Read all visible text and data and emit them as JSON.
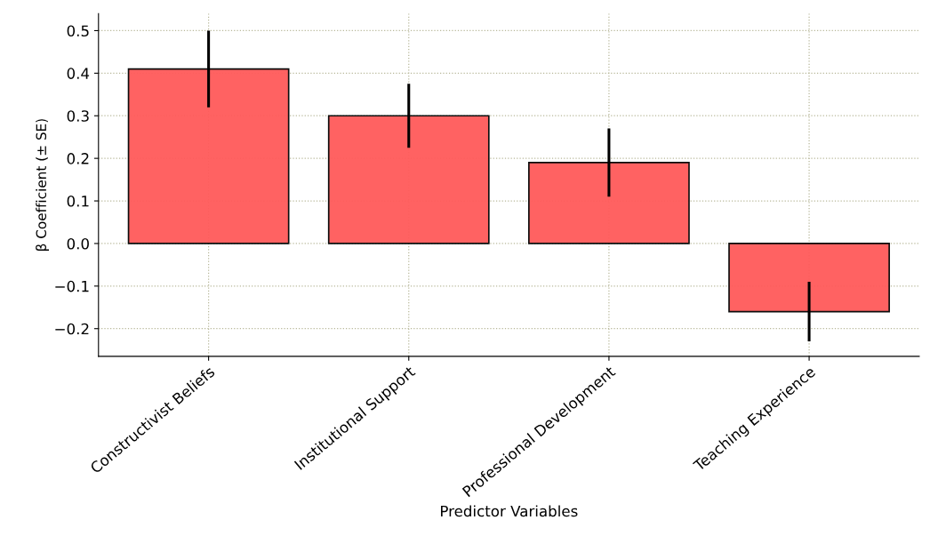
{
  "chart_data": {
    "type": "bar",
    "xlabel": "Predictor Variables",
    "ylabel": "β Coefficient (± SE)",
    "categories": [
      "Constructivist Beliefs",
      "Institutional Support",
      "Professional Development",
      "Teaching Experience"
    ],
    "values": [
      0.41,
      0.3,
      0.19,
      -0.16
    ],
    "errors": [
      0.09,
      0.075,
      0.08,
      0.07
    ],
    "color": "#ff5a5a",
    "ylim": [
      -0.265,
      0.54
    ],
    "yticks": [
      {
        "value": -0.2,
        "label": "−0.2"
      },
      {
        "value": -0.1,
        "label": "−0.1"
      },
      {
        "value": 0.0,
        "label": "0.0"
      },
      {
        "value": 0.1,
        "label": "0.1"
      },
      {
        "value": 0.2,
        "label": "0.2"
      },
      {
        "value": 0.3,
        "label": "0.3"
      },
      {
        "value": 0.4,
        "label": "0.4"
      },
      {
        "value": 0.5,
        "label": "0.5"
      }
    ],
    "grid": true
  }
}
